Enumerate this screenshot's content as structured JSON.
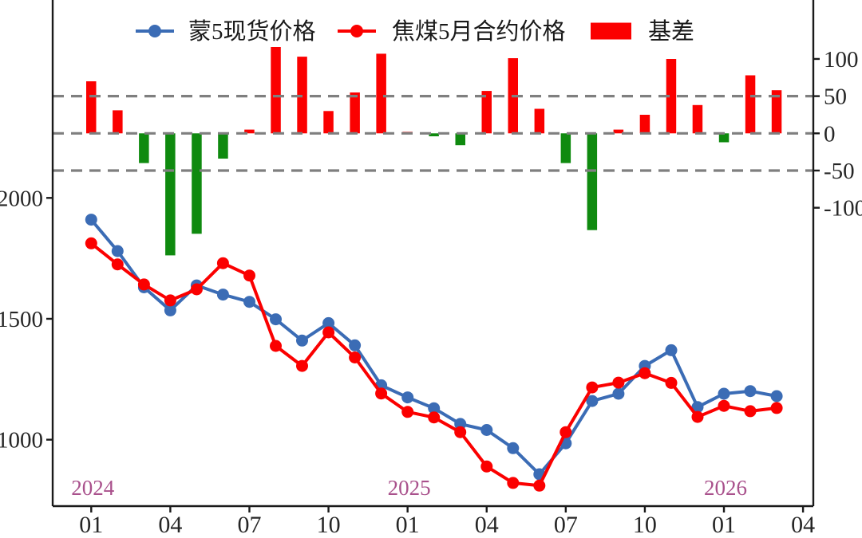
{
  "chart_data": {
    "type": "combo-line-bar",
    "title": "",
    "categories": [
      "2024-01",
      "2024-02",
      "2024-03",
      "2024-04",
      "2024-05",
      "2024-06",
      "2024-07",
      "2024-08",
      "2024-09",
      "2024-10",
      "2024-11",
      "2024-12",
      "2025-01",
      "2025-02",
      "2025-03",
      "2025-04",
      "2025-05",
      "2025-06",
      "2025-07",
      "2025-08",
      "2025-09",
      "2025-10",
      "2025-11",
      "2025-12",
      "2026-01",
      "2026-02",
      "2026-03"
    ],
    "x_tick_labels": [
      "01",
      "04",
      "07",
      "10",
      "01",
      "04",
      "07",
      "10",
      "01",
      "04"
    ],
    "x_tick_positions": [
      0,
      3,
      6,
      9,
      12,
      15,
      18,
      21,
      24,
      27
    ],
    "year_labels": [
      {
        "text": "2024",
        "month_index": 0
      },
      {
        "text": "2025",
        "month_index": 12
      },
      {
        "text": "2026",
        "month_index": 24
      }
    ],
    "year_label_color": "#a9518c",
    "left_axis": {
      "ticks": [
        2000,
        1500,
        1000
      ],
      "approx_range": [
        725,
        2800
      ]
    },
    "right_axis": {
      "ticks": [
        100,
        50,
        0,
        -50,
        -100
      ],
      "approx_range": [
        -500,
        175
      ],
      "gridlines": [
        50,
        0,
        -50
      ],
      "grid_color": "#7f7f7f"
    },
    "legend_position": "top-center",
    "series": [
      {
        "name": "蒙5现货价格",
        "type": "line",
        "axis": "left",
        "color": "#3b6cb5",
        "values": [
          1910,
          1780,
          1630,
          1535,
          1638,
          1600,
          1570,
          1498,
          1410,
          1482,
          1390,
          1225,
          1175,
          1130,
          1065,
          1040,
          965,
          857,
          985,
          1160,
          1190,
          1305,
          1370,
          1135,
          1190,
          1201,
          1180
        ]
      },
      {
        "name": "焦煤5月合约价格",
        "type": "line",
        "axis": "left",
        "color": "#fb0000",
        "values": [
          1812,
          1725,
          1642,
          1576,
          1622,
          1730,
          1679,
          1388,
          1305,
          1444,
          1340,
          1191,
          1115,
          1092,
          1031,
          889,
          821,
          810,
          1031,
          1216,
          1236,
          1275,
          1235,
          1094,
          1140,
          1118,
          1131
        ]
      },
      {
        "name": "基差",
        "type": "bar",
        "axis": "right",
        "positive_color": "#fb0000",
        "negative_color": "#0f8a0f",
        "values": [
          70,
          31,
          -40,
          -164,
          -135,
          -34,
          5,
          116,
          103,
          30,
          55,
          107,
          2,
          -4,
          -16,
          57,
          101,
          33,
          -40,
          -130,
          5,
          25,
          100,
          38,
          -12,
          78,
          58
        ]
      }
    ],
    "text_color": "#262626"
  }
}
